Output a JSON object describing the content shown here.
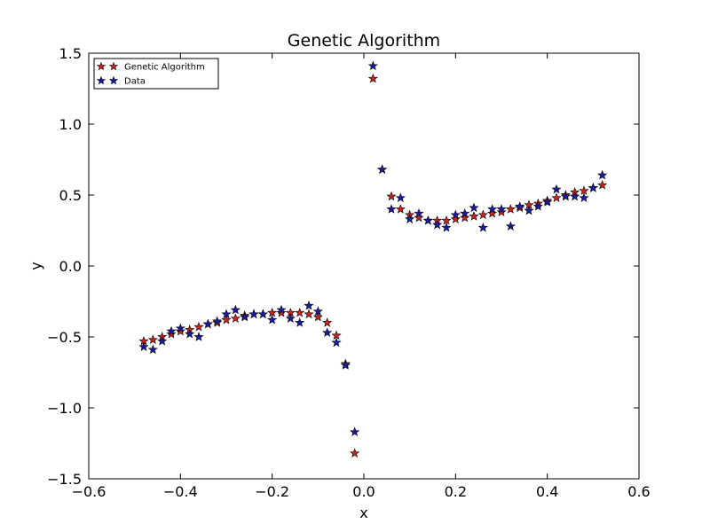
{
  "chart_data": {
    "type": "scatter",
    "title": "Genetic Algorithm",
    "xlabel": "x",
    "ylabel": "y",
    "xlim": [
      -0.6,
      0.6
    ],
    "ylim": [
      -1.5,
      1.5
    ],
    "xticks": [
      -0.6,
      -0.4,
      -0.2,
      0.0,
      0.2,
      0.4,
      0.6
    ],
    "xtick_labels": [
      "−0.6",
      "−0.4",
      "−0.2",
      "0.0",
      "0.2",
      "0.4",
      "0.6"
    ],
    "yticks": [
      -1.5,
      -1.0,
      -0.5,
      0.0,
      0.5,
      1.0,
      1.5
    ],
    "ytick_labels": [
      "−1.5",
      "−1.0",
      "−0.5",
      "0.0",
      "0.5",
      "1.0",
      "1.5"
    ],
    "grid": false,
    "legend_position": "top-left",
    "marker": "star",
    "x": [
      -0.48,
      -0.46,
      -0.44,
      -0.42,
      -0.4,
      -0.38,
      -0.36,
      -0.34,
      -0.32,
      -0.3,
      -0.28,
      -0.26,
      -0.24,
      -0.22,
      -0.2,
      -0.18,
      -0.16,
      -0.14,
      -0.12,
      -0.1,
      -0.08,
      -0.06,
      -0.04,
      -0.02,
      0.02,
      0.04,
      0.06,
      0.08,
      0.1,
      0.12,
      0.14,
      0.16,
      0.18,
      0.2,
      0.22,
      0.24,
      0.26,
      0.28,
      0.3,
      0.32,
      0.34,
      0.36,
      0.38,
      0.4,
      0.42,
      0.44,
      0.46,
      0.48,
      0.5,
      0.52
    ],
    "series": [
      {
        "name": "Genetic Algorithm",
        "color": "#cc2222",
        "values": [
          -0.53,
          -0.52,
          -0.5,
          -0.48,
          -0.46,
          -0.45,
          -0.43,
          -0.41,
          -0.4,
          -0.38,
          -0.37,
          -0.35,
          -0.34,
          -0.34,
          -0.33,
          -0.33,
          -0.33,
          -0.33,
          -0.34,
          -0.36,
          -0.4,
          -0.49,
          -0.69,
          -1.32,
          1.32,
          0.68,
          0.49,
          0.4,
          0.36,
          0.34,
          0.32,
          0.32,
          0.32,
          0.33,
          0.34,
          0.35,
          0.36,
          0.37,
          0.38,
          0.4,
          0.41,
          0.43,
          0.44,
          0.46,
          0.48,
          0.5,
          0.52,
          0.53,
          0.55,
          0.57
        ]
      },
      {
        "name": "Data",
        "color": "#1a1aa8",
        "values": [
          -0.57,
          -0.59,
          -0.53,
          -0.46,
          -0.44,
          -0.48,
          -0.5,
          -0.41,
          -0.39,
          -0.34,
          -0.31,
          -0.36,
          -0.34,
          -0.34,
          -0.38,
          -0.31,
          -0.37,
          -0.4,
          -0.28,
          -0.32,
          -0.47,
          -0.54,
          -0.7,
          -1.17,
          1.41,
          0.68,
          0.4,
          0.48,
          0.33,
          0.37,
          0.32,
          0.29,
          0.27,
          0.36,
          0.37,
          0.41,
          0.27,
          0.4,
          0.4,
          0.28,
          0.42,
          0.39,
          0.42,
          0.45,
          0.54,
          0.49,
          0.49,
          0.48,
          0.55,
          0.64
        ]
      }
    ]
  }
}
